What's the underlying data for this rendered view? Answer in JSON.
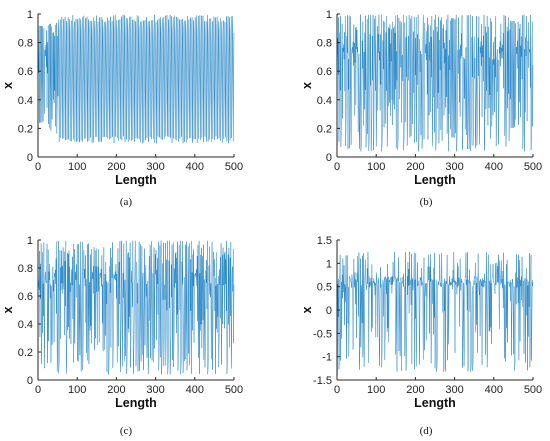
{
  "colors": {
    "line": "#0072BD",
    "axis": "#262626"
  },
  "chart_data": [
    {
      "type": "line",
      "caption": "(a)",
      "xlabel": "Length",
      "ylabel": "x",
      "xlim": [
        0,
        500
      ],
      "ylim": [
        0,
        1
      ],
      "xticks": [
        "0",
        "100",
        "200",
        "300",
        "400",
        "500"
      ],
      "yticks": [
        "0",
        "0.2",
        "0.4",
        "0.6",
        "0.8",
        "1"
      ],
      "series": [
        {
          "n": 500,
          "pattern": "period-4 oscillation after transient",
          "levels": [
            0.97,
            0.12,
            0.45,
            0.88
          ],
          "transient_until": 50
        }
      ]
    },
    {
      "type": "line",
      "caption": "(b)",
      "xlabel": "Length",
      "ylabel": "x",
      "xlim": [
        0,
        500
      ],
      "ylim": [
        0,
        1
      ],
      "xticks": [
        "0",
        "100",
        "200",
        "300",
        "400",
        "500"
      ],
      "yticks": [
        "0",
        "0.2",
        "0.4",
        "0.6",
        "0.8",
        "1"
      ],
      "series": [
        {
          "n": 500,
          "pattern": "chaotic",
          "range": [
            0.02,
            1.0
          ]
        }
      ]
    },
    {
      "type": "line",
      "caption": "(c)",
      "xlabel": "Length",
      "ylabel": "x",
      "xlim": [
        0,
        500
      ],
      "ylim": [
        0,
        1
      ],
      "xticks": [
        "0",
        "100",
        "200",
        "300",
        "400",
        "500"
      ],
      "yticks": [
        "0",
        "0.2",
        "0.4",
        "0.6",
        "0.8",
        "1"
      ],
      "series": [
        {
          "n": 500,
          "pattern": "chaotic",
          "range": [
            0.02,
            1.0
          ]
        }
      ]
    },
    {
      "type": "line",
      "caption": "(d)",
      "xlabel": "Length",
      "ylabel": "x",
      "xlim": [
        0,
        500
      ],
      "ylim": [
        -1.5,
        1.5
      ],
      "xticks": [
        "0",
        "100",
        "200",
        "300",
        "400",
        "500"
      ],
      "yticks": [
        "-1.5",
        "-1",
        "-0.5",
        "0",
        "0.5",
        "1",
        "1.5"
      ],
      "series": [
        {
          "n": 500,
          "pattern": "chaotic, clustered near 0.6",
          "range": [
            -1.4,
            1.3
          ]
        }
      ]
    }
  ]
}
